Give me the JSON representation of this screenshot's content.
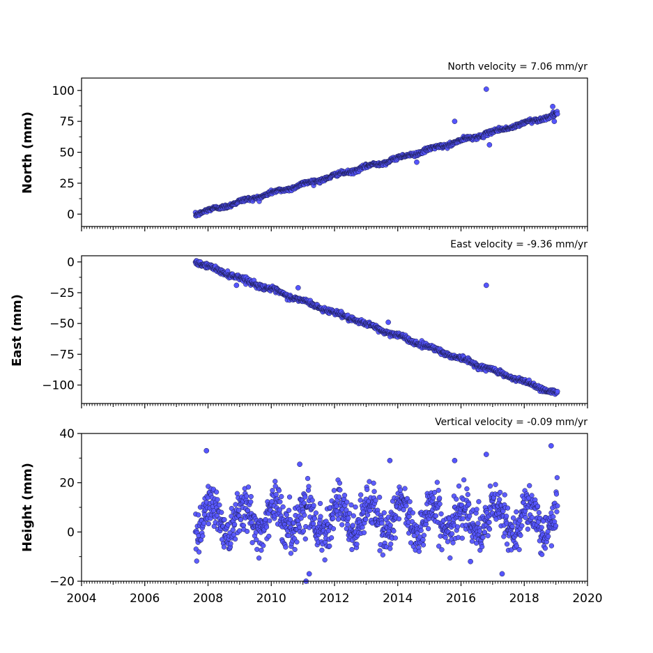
{
  "chart_data": [
    {
      "type": "scatter",
      "title": "North velocity = 7.06 mm/yr",
      "xlabel": "",
      "ylabel": "North (mm)",
      "xlim": [
        2004,
        2020
      ],
      "ylim": [
        -10,
        110
      ],
      "yticks": [
        0,
        25,
        50,
        75,
        100
      ],
      "ytick_labels": [
        "0",
        "25",
        "50",
        "75",
        "100"
      ],
      "marker_color": "#5555ff",
      "start_year": 2007.6,
      "end_year": 2019.05,
      "intercept": 0,
      "slope_mm_per_year": 7.06,
      "noise_sd": 0.8,
      "seasonal_amplitude": 0.8,
      "outliers": [
        [
          2016.8,
          101
        ],
        [
          2015.8,
          75
        ],
        [
          2016.9,
          56
        ],
        [
          2014.6,
          42
        ],
        [
          2018.9,
          87
        ],
        [
          2018.95,
          75
        ]
      ]
    },
    {
      "type": "scatter",
      "title": "East velocity = -9.36 mm/yr",
      "xlabel": "",
      "ylabel": "East (mm)",
      "xlim": [
        2004,
        2020
      ],
      "ylim": [
        -115,
        5
      ],
      "yticks": [
        0,
        -25,
        -50,
        -75,
        -100
      ],
      "ytick_labels": [
        "0",
        "−25",
        "−50",
        "−75",
        "−100"
      ],
      "marker_color": "#5555ff",
      "start_year": 2007.6,
      "end_year": 2019.05,
      "intercept": 0,
      "slope_mm_per_year": -9.36,
      "noise_sd": 1.0,
      "seasonal_amplitude": 0.8,
      "outliers": [
        [
          2016.8,
          -19
        ],
        [
          2008.9,
          -19
        ],
        [
          2013.7,
          -49
        ],
        [
          2010.85,
          -21
        ]
      ]
    },
    {
      "type": "scatter",
      "title": "Vertical velocity = -0.09 mm/yr",
      "xlabel": "",
      "ylabel": "Height (mm)",
      "xlim": [
        2004,
        2020
      ],
      "ylim": [
        -20,
        40
      ],
      "yticks": [
        -20,
        0,
        20,
        40
      ],
      "ytick_labels": [
        "−20",
        "0",
        "20",
        "40"
      ],
      "xticks": [
        2004,
        2006,
        2008,
        2010,
        2012,
        2014,
        2016,
        2018,
        2020
      ],
      "xtick_labels": [
        "2004",
        "2006",
        "2008",
        "2010",
        "2012",
        "2014",
        "2016",
        "2018",
        "2020"
      ],
      "marker_color": "#5555ff",
      "start_year": 2007.6,
      "end_year": 2019.05,
      "intercept": 6,
      "slope_mm_per_year": -0.09,
      "noise_sd": 4.5,
      "seasonal_amplitude": 6,
      "outliers": [
        [
          2007.95,
          33
        ],
        [
          2018.85,
          35
        ],
        [
          2016.8,
          31.5
        ],
        [
          2013.75,
          29
        ],
        [
          2015.8,
          29
        ],
        [
          2011.1,
          -20
        ],
        [
          2011.2,
          -17
        ],
        [
          2016.3,
          -12
        ],
        [
          2017.3,
          -17
        ],
        [
          2010.9,
          27.5
        ]
      ]
    }
  ]
}
